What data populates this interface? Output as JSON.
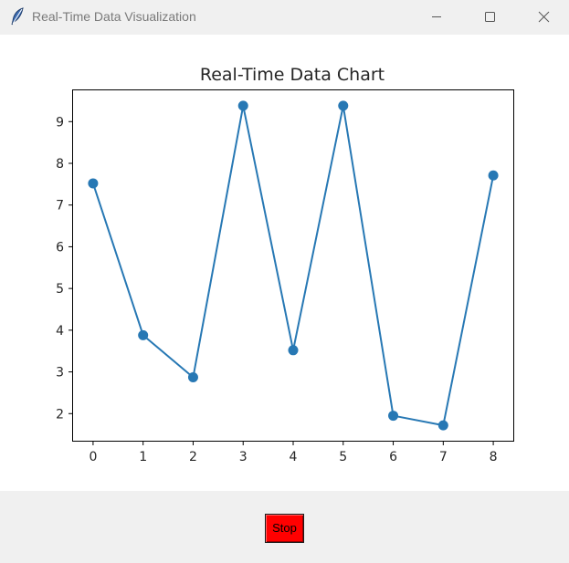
{
  "window": {
    "title": "Real-Time Data Visualization",
    "icon": "feather-icon",
    "controls": [
      "minimize-icon",
      "maximize-icon",
      "close-icon"
    ]
  },
  "chart_data": {
    "type": "line",
    "title": "Real-Time Data Chart",
    "xlabel": "",
    "ylabel": "",
    "x": [
      0,
      1,
      2,
      3,
      4,
      5,
      6,
      7,
      8
    ],
    "values": [
      7.52,
      3.88,
      2.87,
      9.38,
      3.52,
      9.38,
      1.95,
      1.72,
      7.71
    ],
    "xlim": [
      -0.4,
      8.4
    ],
    "ylim": [
      1.35,
      9.75
    ],
    "xticks": [
      0,
      1,
      2,
      3,
      4,
      5,
      6,
      7,
      8
    ],
    "yticks": [
      2,
      3,
      4,
      5,
      6,
      7,
      8,
      9
    ],
    "marker": "circle",
    "grid": false,
    "legend": "none",
    "color": "#2778b4"
  },
  "controls": {
    "stop_label": "Stop",
    "stop_color": "#ff0000"
  }
}
